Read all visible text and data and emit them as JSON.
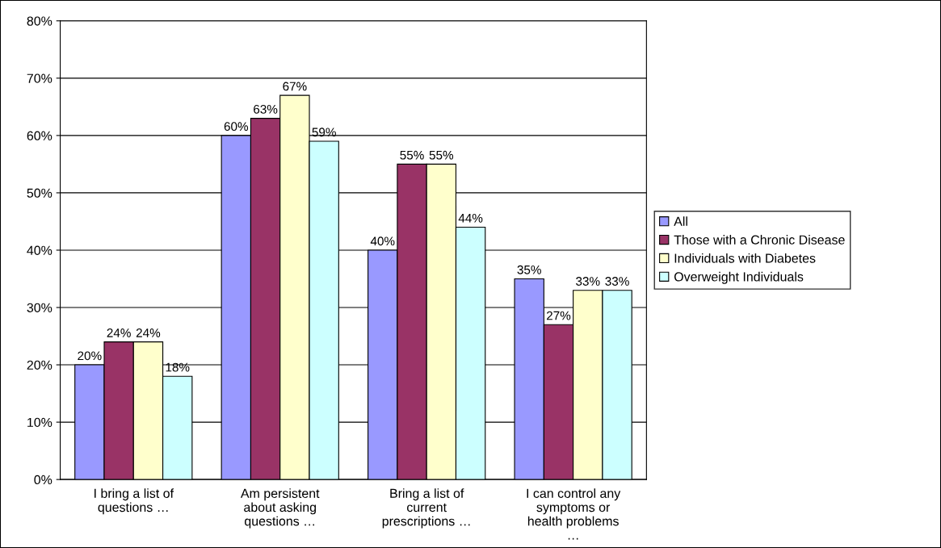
{
  "chart_data": {
    "type": "bar",
    "categories": [
      "I bring a list of\nquestions …",
      "Am persistent\nabout asking\nquestions …",
      "Bring a list of\ncurrent\nprescriptions …",
      "I can control any\nsymptoms or\nhealth problems\n…"
    ],
    "series": [
      {
        "name": "All",
        "color": "#9999ff",
        "values": [
          20,
          60,
          40,
          35
        ],
        "value_labels": [
          "20%",
          "60%",
          "40%",
          "35%"
        ]
      },
      {
        "name": "Those with a Chronic Disease",
        "color": "#993366",
        "values": [
          24,
          63,
          55,
          27
        ],
        "value_labels": [
          "24%",
          "63%",
          "55%",
          "27%"
        ]
      },
      {
        "name": "Individuals with Diabetes",
        "color": "#ffffcc",
        "values": [
          24,
          67,
          55,
          33
        ],
        "value_labels": [
          "24%",
          "67%",
          "55%",
          "33%"
        ]
      },
      {
        "name": "Overweight Individuals",
        "color": "#ccffff",
        "values": [
          18,
          59,
          44,
          33
        ],
        "value_labels": [
          "18%",
          "59%",
          "44%",
          "33%"
        ]
      }
    ],
    "ylim": [
      0,
      80
    ],
    "yticks": [
      {
        "value": 0,
        "label": "0%"
      },
      {
        "value": 10,
        "label": "10%"
      },
      {
        "value": 20,
        "label": "20%"
      },
      {
        "value": 30,
        "label": "30%"
      },
      {
        "value": 40,
        "label": "40%"
      },
      {
        "value": 50,
        "label": "50%"
      },
      {
        "value": 60,
        "label": "60%"
      },
      {
        "value": 70,
        "label": "70%"
      },
      {
        "value": 80,
        "label": "80%"
      }
    ],
    "grid": "y",
    "legend": "right"
  }
}
